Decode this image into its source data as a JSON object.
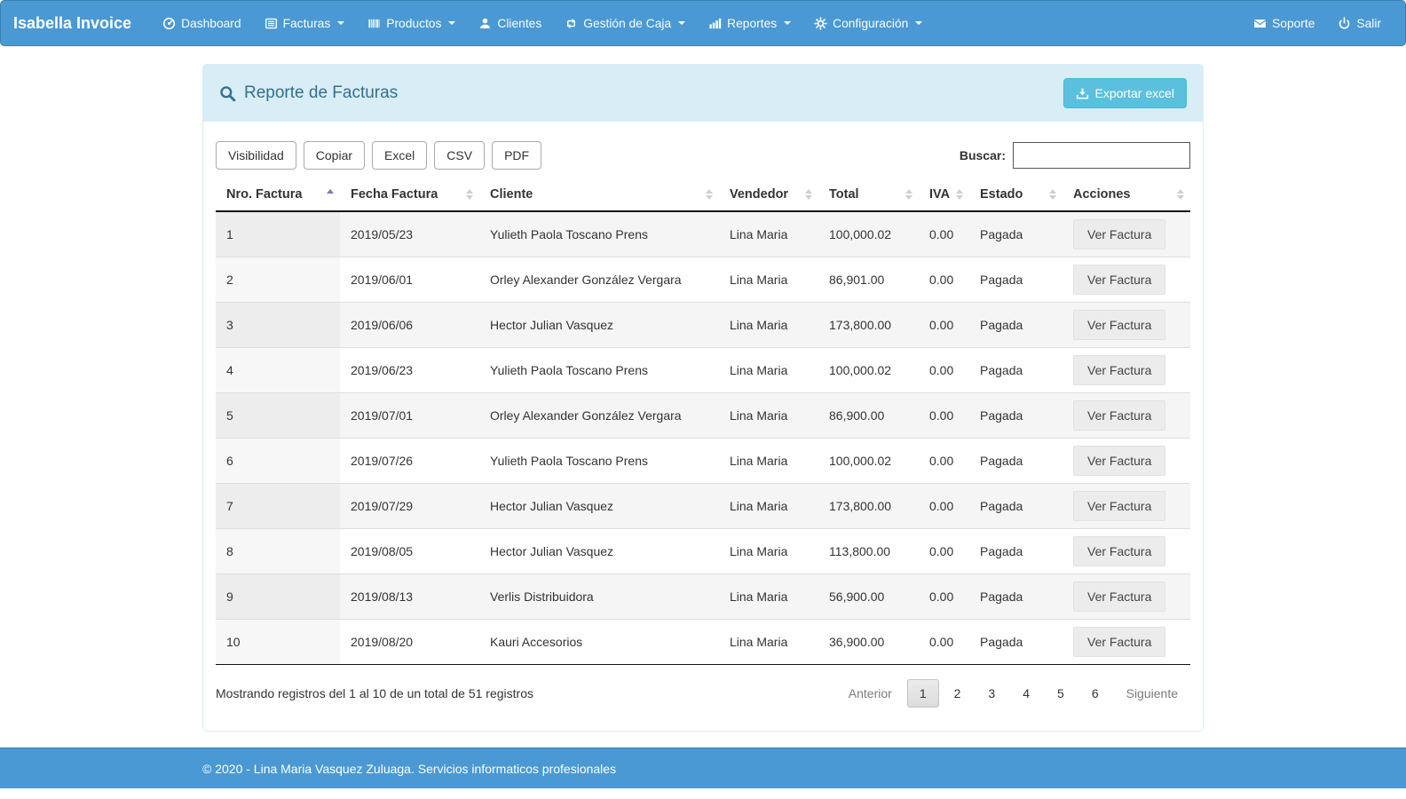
{
  "navbar": {
    "brand": "Isabella Invoice",
    "items": [
      {
        "label": "Dashboard",
        "icon": "dashboard-icon",
        "caret": false
      },
      {
        "label": "Facturas",
        "icon": "invoices-icon",
        "caret": true
      },
      {
        "label": "Productos",
        "icon": "barcode-icon",
        "caret": true
      },
      {
        "label": "Clientes",
        "icon": "clients-icon",
        "caret": false
      },
      {
        "label": "Gestión de Caja",
        "icon": "cash-transfer-icon",
        "caret": true
      },
      {
        "label": "Reportes",
        "icon": "reports-icon",
        "caret": true
      },
      {
        "label": "Configuración",
        "icon": "gear-icon",
        "caret": true
      }
    ],
    "right_items": [
      {
        "label": "Soporte",
        "icon": "envelope-icon"
      },
      {
        "label": "Salir",
        "icon": "power-icon"
      }
    ]
  },
  "panel": {
    "title": "Reporte de Facturas",
    "title_icon": "search-icon",
    "export_button_label": "Exportar excel"
  },
  "toolbar": {
    "buttons": [
      "Visibilidad",
      "Copiar",
      "Excel",
      "CSV",
      "PDF"
    ]
  },
  "search": {
    "label": "Buscar:",
    "value": ""
  },
  "table": {
    "columns": [
      {
        "label": "Nro. Factura",
        "sort": "asc"
      },
      {
        "label": "Fecha Factura",
        "sort": "both"
      },
      {
        "label": "Cliente",
        "sort": "both"
      },
      {
        "label": "Vendedor",
        "sort": "both"
      },
      {
        "label": "Total",
        "sort": "both"
      },
      {
        "label": "IVA",
        "sort": "both"
      },
      {
        "label": "Estado",
        "sort": "both"
      },
      {
        "label": "Acciones",
        "sort": "both"
      }
    ],
    "action_label": "Ver Factura",
    "rows": [
      [
        "1",
        "2019/05/23",
        "Yulieth Paola Toscano Prens",
        "Lina Maria",
        "100,000.02",
        "0.00",
        "Pagada"
      ],
      [
        "2",
        "2019/06/01",
        "Orley Alexander González Vergara",
        "Lina Maria",
        "86,901.00",
        "0.00",
        "Pagada"
      ],
      [
        "3",
        "2019/06/06",
        "Hector Julian Vasquez",
        "Lina Maria",
        "173,800.00",
        "0.00",
        "Pagada"
      ],
      [
        "4",
        "2019/06/23",
        "Yulieth Paola Toscano Prens",
        "Lina Maria",
        "100,000.02",
        "0.00",
        "Pagada"
      ],
      [
        "5",
        "2019/07/01",
        "Orley Alexander González Vergara",
        "Lina Maria",
        "86,900.00",
        "0.00",
        "Pagada"
      ],
      [
        "6",
        "2019/07/26",
        "Yulieth Paola Toscano Prens",
        "Lina Maria",
        "100,000.02",
        "0.00",
        "Pagada"
      ],
      [
        "7",
        "2019/07/29",
        "Hector Julian Vasquez",
        "Lina Maria",
        "173,800.00",
        "0.00",
        "Pagada"
      ],
      [
        "8",
        "2019/08/05",
        "Hector Julian Vasquez",
        "Lina Maria",
        "113,800.00",
        "0.00",
        "Pagada"
      ],
      [
        "9",
        "2019/08/13",
        "Verlis Distribuidora",
        "Lina Maria",
        "56,900.00",
        "0.00",
        "Pagada"
      ],
      [
        "10",
        "2019/08/20",
        "Kauri Accesorios",
        "Lina Maria",
        "36,900.00",
        "0.00",
        "Pagada"
      ]
    ]
  },
  "pagination": {
    "info": "Mostrando registros del 1 al 10 de un total de 51 registros",
    "previous": "Anterior",
    "pages": [
      "1",
      "2",
      "3",
      "4",
      "5",
      "6"
    ],
    "active_page": "1",
    "next": "Siguiente"
  },
  "footer": {
    "copyright": "© 2020 - Lina Maria Vasquez Zuluaga. Servicios informaticos profesionales"
  },
  "colors": {
    "navbar_bg": "#4a99d4",
    "panel_header_bg": "#d9edf7",
    "panel_header_text": "#31708f",
    "export_button_bg": "#5bc0de",
    "active_sort_arrow": "#7577cc",
    "footer_bg": "#4a99d4"
  }
}
